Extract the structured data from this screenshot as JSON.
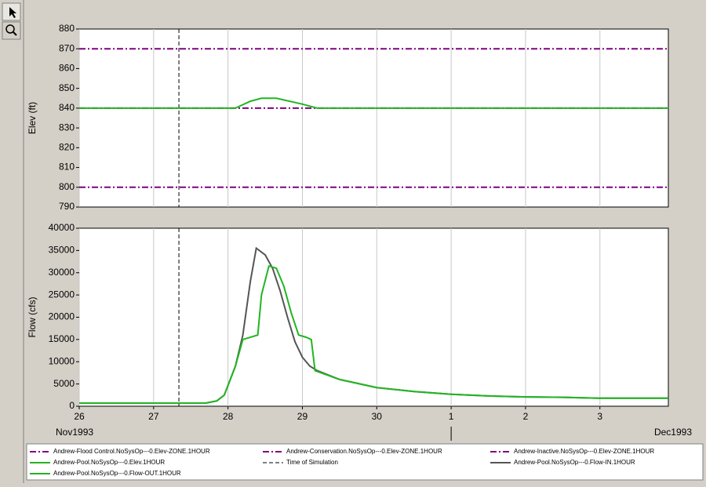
{
  "chart_data": [
    {
      "type": "line",
      "ylabel": "Elev (ft)",
      "ylim": [
        790,
        880
      ],
      "yticks": [
        790,
        800,
        810,
        820,
        830,
        840,
        850,
        860,
        870,
        880
      ],
      "grid": "x",
      "series": [
        {
          "name": "Andrew-Flood Control.NoSysOp---0.Elev-ZONE.1HOUR",
          "color": "#800080",
          "style": "dashdot",
          "x": [
            26,
            33.92
          ],
          "values": [
            870,
            870
          ]
        },
        {
          "name": "Andrew-Conservation.NoSysOp---0.Elev-ZONE.1HOUR",
          "color": "#800080",
          "style": "dashdot",
          "x": [
            26,
            33.92
          ],
          "values": [
            840,
            840
          ]
        },
        {
          "name": "Andrew-Inactive.NoSysOp---0.Elev-ZONE.1HOUR",
          "color": "#800080",
          "style": "dashdot",
          "x": [
            26,
            33.92
          ],
          "values": [
            800,
            800
          ]
        },
        {
          "name": "Andrew-Pool.NoSysOp---0.Elev.1HOUR",
          "color": "#22b522",
          "style": "solid",
          "x": [
            26,
            28.1,
            28.3,
            28.45,
            28.65,
            29.0,
            29.2,
            33.92
          ],
          "values": [
            840,
            840,
            843.5,
            845,
            845,
            842,
            840,
            840
          ]
        }
      ]
    },
    {
      "type": "line",
      "ylabel": "Flow (cfs)",
      "ylim": [
        0,
        40000
      ],
      "yticks": [
        0,
        5000,
        10000,
        15000,
        20000,
        25000,
        30000,
        35000,
        40000
      ],
      "grid": "x",
      "xlim": [
        26,
        33.92
      ],
      "xticks": [
        26,
        27,
        28,
        29,
        30,
        {
          "value": 31,
          "label": "1"
        },
        {
          "value": 32,
          "label": "2"
        },
        {
          "value": 33,
          "label": "3"
        }
      ],
      "month_labels": [
        {
          "value": 26,
          "label": "Nov1993"
        },
        {
          "value": 31,
          "label": "Dec1993"
        }
      ],
      "series": [
        {
          "name": "Andrew-Pool.NoSysOp---0.Flow-IN.1HOUR",
          "color": "#555555",
          "style": "solid",
          "x": [
            26,
            27.7,
            27.85,
            27.95,
            28.1,
            28.2,
            28.3,
            28.38,
            28.5,
            28.6,
            28.7,
            28.8,
            28.9,
            29.0,
            29.1,
            29.2,
            29.5,
            30,
            30.5,
            31,
            31.5,
            32,
            32.5,
            33,
            33.92
          ],
          "values": [
            700,
            700,
            1200,
            2500,
            9000,
            16000,
            28000,
            35500,
            34000,
            31000,
            26000,
            20000,
            14500,
            11000,
            9000,
            8000,
            6000,
            4200,
            3300,
            2700,
            2300,
            2100,
            2000,
            1800,
            1800
          ]
        },
        {
          "name": "Andrew-Pool.NoSysOp---0.Flow-OUT.1HOUR",
          "color": "#22b522",
          "style": "solid",
          "x": [
            26,
            27.7,
            27.85,
            27.95,
            28.1,
            28.2,
            28.4,
            28.45,
            28.55,
            28.65,
            28.75,
            28.85,
            28.95,
            29.05,
            29.12,
            29.17,
            29.5,
            30,
            30.5,
            31,
            31.5,
            32,
            32.5,
            33,
            33.92
          ],
          "values": [
            700,
            700,
            1200,
            2500,
            9000,
            15000,
            16000,
            25000,
            31500,
            31000,
            27000,
            21000,
            16000,
            15500,
            15000,
            8000,
            6000,
            4200,
            3300,
            2700,
            2300,
            2100,
            2000,
            1800,
            1800
          ]
        }
      ]
    }
  ],
  "annotation": {
    "label": "Time of Simulation",
    "x": 27.34,
    "color": "#000000",
    "style": "dashed"
  }
}
